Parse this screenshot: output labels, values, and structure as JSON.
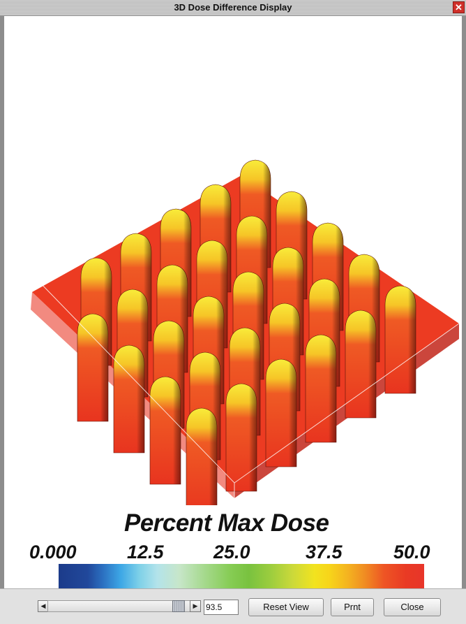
{
  "window": {
    "title": "3D Dose Difference Display",
    "close_glyph": "✕"
  },
  "legend": {
    "title": "Percent Max Dose",
    "ticks": [
      "0.000",
      "12.5",
      "25.0",
      "37.5",
      "50.0"
    ],
    "range": [
      0,
      50
    ],
    "colormap": [
      "#1c3b8a",
      "#2b6fc0",
      "#3da7e6",
      "#b3e3ea",
      "#86cc54",
      "#cbd93a",
      "#f2e31f",
      "#f08a22",
      "#e8352a"
    ]
  },
  "controls": {
    "scroll_left_icon": "triangle-left",
    "scroll_right_icon": "triangle-right",
    "slider_value": "93.5",
    "slider_fraction": 0.9,
    "reset_view_label": "Reset View",
    "print_label": "Prnt",
    "close_label": "Close"
  },
  "colors": {
    "surface_red": "#ee3a24",
    "peak_yellow": "#f7e02a",
    "titlebar_close": "#d0302a"
  }
}
